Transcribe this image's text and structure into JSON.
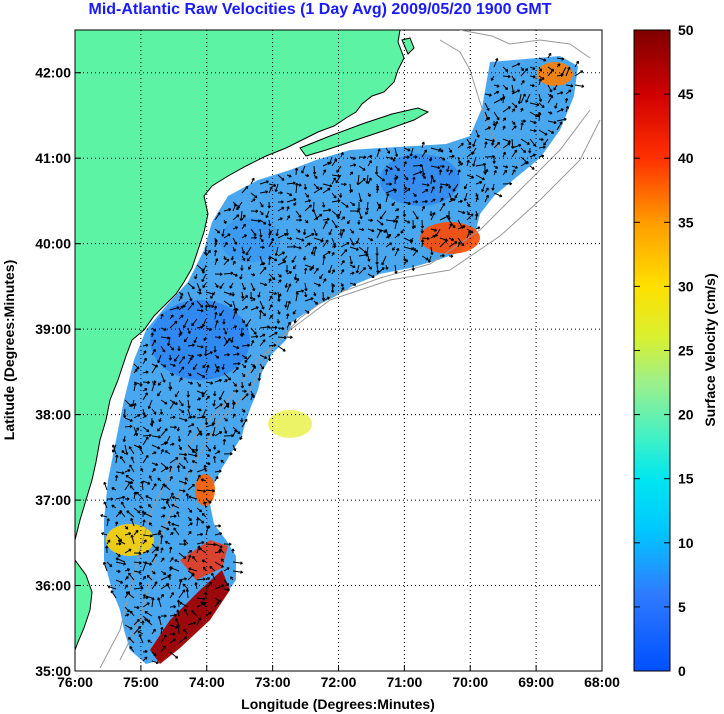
{
  "title": "Mid-Atlantic Raw Velocities (1 Day Avg) 2009/05/20 1900 GMT",
  "map": {
    "xlabel": "Longitude (Degrees:Minutes)",
    "ylabel": "Latitude (Degrees:Minutes)",
    "x_ticks": [
      "76:00",
      "75:00",
      "74:00",
      "73:00",
      "72:00",
      "71:00",
      "70:00",
      "69:00",
      "68:00"
    ],
    "y_ticks": [
      "35:00",
      "36:00",
      "37:00",
      "38:00",
      "39:00",
      "40:00",
      "41:00",
      "42:00"
    ],
    "x_range": [
      -76,
      -68
    ],
    "y_range": [
      35,
      42.5
    ],
    "grid": "dotted",
    "colors": {
      "land": "#5cf4a4",
      "coast": "#000000",
      "bathymetry": "#999999"
    }
  },
  "colorbar": {
    "label": "Surface Velocity (cm/s)",
    "ticks": [
      "0",
      "5",
      "10",
      "15",
      "20",
      "25",
      "30",
      "35",
      "40",
      "45",
      "50"
    ],
    "range": [
      0,
      50
    ],
    "colormap": "jet"
  }
}
